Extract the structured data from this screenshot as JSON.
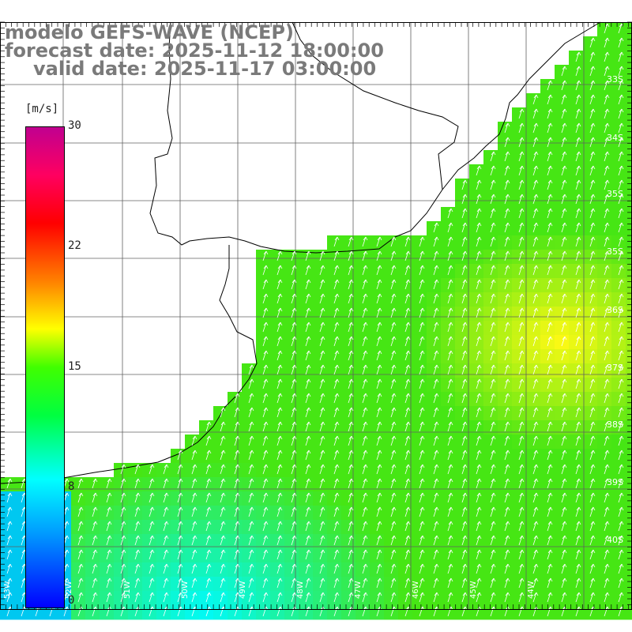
{
  "title": {
    "line1": "modelo GEFS-WAVE (NCEP)",
    "line2": "forecast date: 2025-11-12 18:00:00",
    "line3": "valid date: 2025-11-17 03:00:00"
  },
  "colorbar": {
    "unit": "[m/s]",
    "min": 0,
    "max": 30,
    "ticks": [
      "0",
      "8",
      "15",
      "22",
      "30"
    ],
    "tick_values": [
      0,
      8,
      15,
      22,
      30
    ]
  },
  "map": {
    "lat_labels": [
      "33S",
      "34S",
      "35S",
      "36S",
      "37S",
      "38S",
      "39S",
      "40S"
    ],
    "lon_labels": [
      "53W",
      "52W",
      "51W",
      "50W",
      "49W",
      "48W",
      "47W",
      "46W",
      "45W",
      "44W"
    ],
    "grid": true,
    "vector_direction": "toward NNE"
  }
}
